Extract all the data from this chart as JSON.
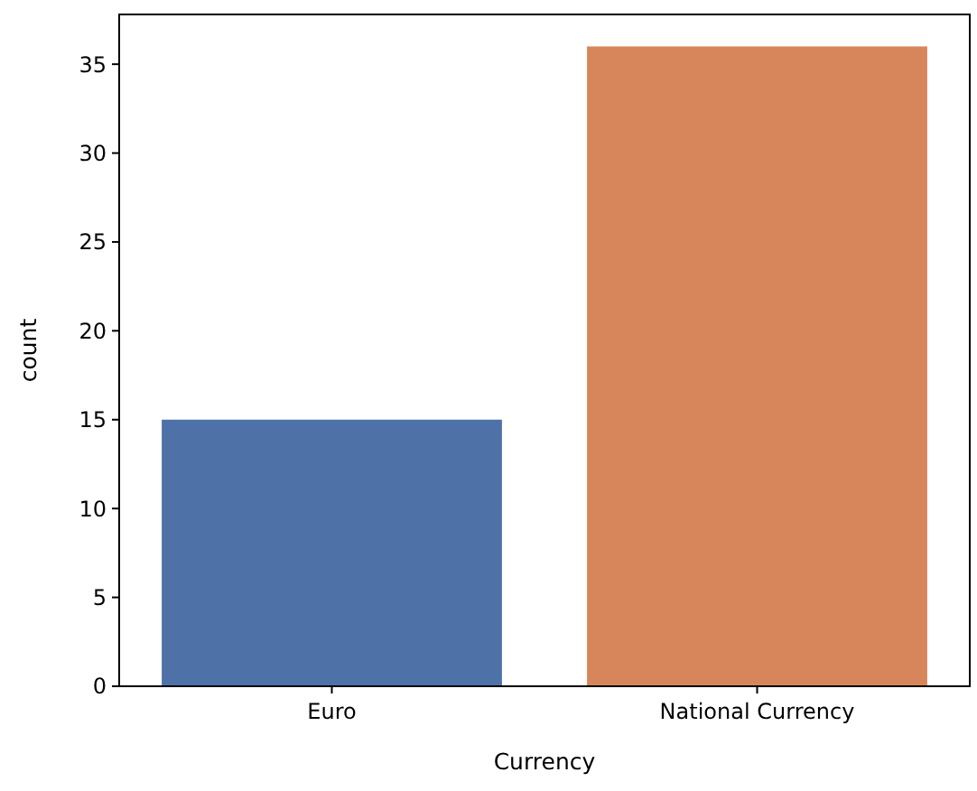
{
  "chart_data": {
    "type": "bar",
    "xlabel": "Currency",
    "ylabel": "count",
    "categories": [
      "Euro",
      "National Currency"
    ],
    "values": [
      15,
      36
    ],
    "colors": [
      "#4e72a8",
      "#d6865a"
    ],
    "ylim": [
      0,
      37.8
    ],
    "yticks": [
      0,
      5,
      10,
      15,
      20,
      25,
      30,
      35
    ],
    "grid": false
  }
}
